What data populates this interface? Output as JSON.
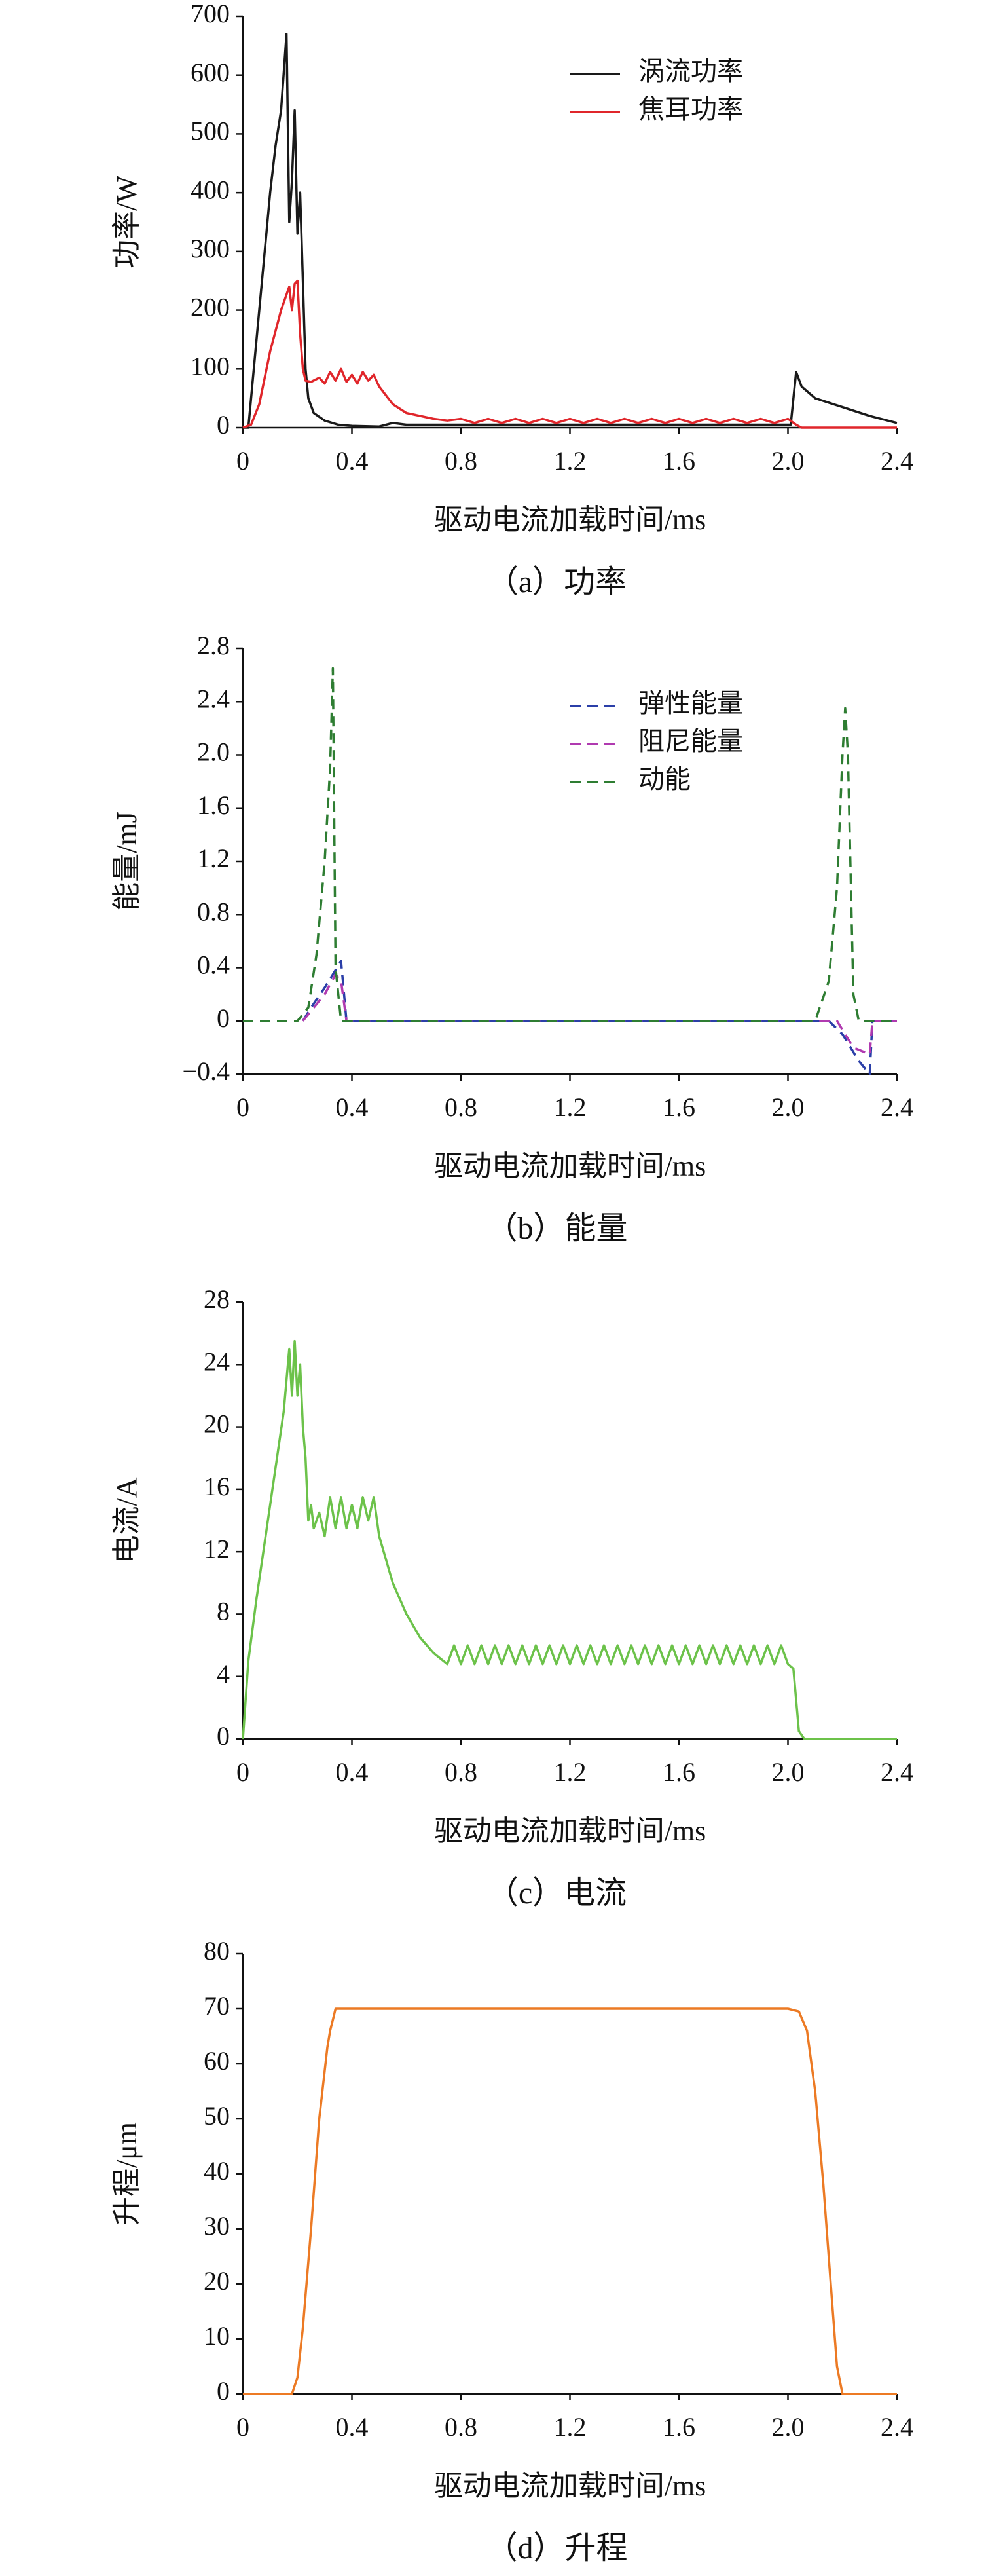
{
  "chart_data": [
    {
      "type": "line",
      "title": "（a）功率",
      "xlabel": "驱动电流加载时间/ms",
      "ylabel": "功率/W",
      "xlim": [
        0,
        2.4
      ],
      "xticks": [
        0,
        0.4,
        0.8,
        1.2,
        1.6,
        {
          "value": 2,
          "label": "2.0"
        },
        2.4
      ],
      "ylim": [
        0,
        700
      ],
      "yticks": [
        0,
        100,
        200,
        300,
        400,
        500,
        600,
        700
      ],
      "grid": false,
      "legend": "upper right",
      "dashed": false,
      "series": [
        {
          "name": "涡流功率",
          "color": "#1a1a1a",
          "x": [
            0,
            0.02,
            0.05,
            0.08,
            0.1,
            0.12,
            0.14,
            0.16,
            0.17,
            0.18,
            0.19,
            0.2,
            0.21,
            0.22,
            0.23,
            0.24,
            0.26,
            0.3,
            0.35,
            0.4,
            0.5,
            0.55,
            0.6,
            0.7,
            0.8,
            1.2,
            1.6,
            2.0,
            2.01,
            2.03,
            2.05,
            2.1,
            2.2,
            2.3,
            2.4
          ],
          "values": [
            0,
            0,
            150,
            300,
            400,
            480,
            540,
            670,
            350,
            420,
            540,
            330,
            400,
            250,
            100,
            50,
            25,
            12,
            5,
            3,
            2,
            8,
            5,
            5,
            5,
            5,
            5,
            5,
            5,
            95,
            70,
            50,
            35,
            20,
            8
          ]
        },
        {
          "name": "焦耳功率",
          "color": "#e0262b",
          "x": [
            0,
            0.03,
            0.06,
            0.1,
            0.14,
            0.17,
            0.18,
            0.19,
            0.2,
            0.21,
            0.22,
            0.23,
            0.25,
            0.28,
            0.3,
            0.32,
            0.34,
            0.36,
            0.38,
            0.4,
            0.42,
            0.44,
            0.46,
            0.48,
            0.5,
            0.55,
            0.6,
            0.7,
            0.75,
            0.8,
            0.85,
            0.9,
            0.95,
            1.0,
            1.05,
            1.1,
            1.15,
            1.2,
            1.25,
            1.3,
            1.35,
            1.4,
            1.45,
            1.5,
            1.55,
            1.6,
            1.65,
            1.7,
            1.75,
            1.8,
            1.85,
            1.9,
            1.95,
            2.0,
            2.03,
            2.05,
            2.4
          ],
          "values": [
            0,
            5,
            40,
            130,
            200,
            240,
            200,
            245,
            250,
            160,
            100,
            80,
            78,
            85,
            75,
            95,
            80,
            100,
            78,
            90,
            75,
            95,
            80,
            90,
            70,
            40,
            25,
            15,
            12,
            15,
            8,
            15,
            8,
            15,
            8,
            15,
            8,
            15,
            8,
            15,
            8,
            15,
            8,
            15,
            8,
            15,
            8,
            15,
            8,
            15,
            8,
            15,
            8,
            15,
            5,
            0,
            0
          ]
        }
      ]
    },
    {
      "type": "line",
      "title": "（b）能量",
      "xlabel": "驱动电流加载时间/ms",
      "ylabel": "能量/mJ",
      "xlim": [
        0,
        2.4
      ],
      "xticks": [
        0,
        0.4,
        0.8,
        1.2,
        1.6,
        {
          "value": 2,
          "label": "2.0"
        },
        2.4
      ],
      "ylim": [
        -0.4,
        2.8
      ],
      "yticks": [
        {
          "value": -0.4,
          "label": "−0.4"
        },
        0,
        0.4,
        0.8,
        1.2,
        1.6,
        {
          "value": 2,
          "label": "2.0"
        },
        2.4,
        2.8
      ],
      "grid": false,
      "legend": "upper right",
      "dashed": true,
      "series": [
        {
          "name": "弹性能量",
          "color": "#2b3fa8",
          "x": [
            0.22,
            0.25,
            0.3,
            0.33,
            0.36,
            0.38,
            2.15,
            2.2,
            2.26,
            2.3,
            2.31,
            2.4
          ],
          "values": [
            0,
            0.1,
            0.25,
            0.35,
            0.45,
            0,
            0,
            -0.1,
            -0.3,
            -0.4,
            0,
            0
          ]
        },
        {
          "name": "阻尼能量",
          "color": "#b03ab0",
          "x": [
            0.22,
            0.3,
            0.34,
            0.36,
            0.38,
            2.18,
            2.24,
            2.3,
            2.31,
            2.4
          ],
          "values": [
            0,
            0.2,
            0.35,
            0.3,
            0,
            0,
            -0.2,
            -0.25,
            0,
            0
          ]
        },
        {
          "name": "动能",
          "color": "#2e7d32",
          "x": [
            0,
            0.2,
            0.24,
            0.27,
            0.3,
            0.32,
            0.33,
            0.34,
            0.36,
            0.4,
            2.1,
            2.15,
            2.18,
            2.2,
            2.21,
            2.22,
            2.24,
            2.26,
            2.4
          ],
          "values": [
            0,
            0,
            0.1,
            0.5,
            1.2,
            1.9,
            2.65,
            0.4,
            0,
            0,
            0,
            0.3,
            1.0,
            2.0,
            2.35,
            2.0,
            0.2,
            0,
            0
          ]
        }
      ]
    },
    {
      "type": "line",
      "title": "（c）电流",
      "xlabel": "驱动电流加载时间/ms",
      "ylabel": "电流/A",
      "xlim": [
        0,
        2.4
      ],
      "xticks": [
        0,
        0.4,
        0.8,
        1.2,
        1.6,
        {
          "value": 2,
          "label": "2.0"
        },
        2.4
      ],
      "ylim": [
        0,
        28
      ],
      "yticks": [
        0,
        4,
        8,
        12,
        16,
        20,
        24,
        28
      ],
      "grid": false,
      "dashed": false,
      "color": "#6cc24a",
      "x": [
        0,
        0.02,
        0.05,
        0.1,
        0.15,
        0.17,
        0.18,
        0.19,
        0.2,
        0.21,
        0.22,
        0.23,
        0.24,
        0.25,
        0.26,
        0.28,
        0.3,
        0.32,
        0.34,
        0.36,
        0.38,
        0.4,
        0.42,
        0.44,
        0.46,
        0.48,
        0.5,
        0.55,
        0.6,
        0.65,
        0.7,
        0.75,
        0.775,
        0.8,
        0.825,
        0.85,
        0.875,
        0.9,
        0.925,
        0.95,
        0.975,
        1.0,
        1.025,
        1.05,
        1.075,
        1.1,
        1.125,
        1.15,
        1.175,
        1.2,
        1.225,
        1.25,
        1.275,
        1.3,
        1.325,
        1.35,
        1.375,
        1.4,
        1.425,
        1.45,
        1.475,
        1.5,
        1.525,
        1.55,
        1.575,
        1.6,
        1.625,
        1.65,
        1.675,
        1.7,
        1.725,
        1.75,
        1.775,
        1.8,
        1.825,
        1.85,
        1.875,
        1.9,
        1.925,
        1.95,
        1.975,
        2.0,
        2.02,
        2.04,
        2.06,
        2.4
      ],
      "values": [
        0,
        5,
        9,
        15,
        21,
        25,
        22,
        25.5,
        22,
        24,
        20,
        18,
        14,
        15,
        13.5,
        14.5,
        13,
        15.5,
        13.5,
        15.5,
        13.5,
        15,
        13.5,
        15.5,
        14,
        15.5,
        13,
        10,
        8,
        6.5,
        5.5,
        4.8,
        6,
        4.8,
        6,
        4.8,
        6,
        4.8,
        6,
        4.8,
        6,
        4.8,
        6,
        4.8,
        6,
        4.8,
        6,
        4.8,
        6,
        4.8,
        6,
        4.8,
        6,
        4.8,
        6,
        4.8,
        6,
        4.8,
        6,
        4.8,
        6,
        4.8,
        6,
        4.8,
        6,
        4.8,
        6,
        4.8,
        6,
        4.8,
        6,
        4.8,
        6,
        4.8,
        6,
        4.8,
        6,
        4.8,
        6,
        4.8,
        6,
        4.8,
        4.5,
        0.5,
        0,
        0
      ]
    },
    {
      "type": "line",
      "title": "（d）升程",
      "xlabel": "驱动电流加载时间/ms",
      "ylabel": "升程/μm",
      "xlim": [
        0,
        2.4
      ],
      "xticks": [
        0,
        0.4,
        0.8,
        1.2,
        1.6,
        {
          "value": 2,
          "label": "2.0"
        },
        2.4
      ],
      "ylim": [
        0,
        80
      ],
      "yticks": [
        0,
        10,
        20,
        30,
        40,
        50,
        60,
        70,
        80
      ],
      "grid": false,
      "dashed": false,
      "color": "#ec7a24",
      "x": [
        0,
        0.18,
        0.2,
        0.22,
        0.25,
        0.28,
        0.31,
        0.32,
        0.33,
        0.34,
        2.0,
        2.04,
        2.07,
        2.1,
        2.13,
        2.16,
        2.18,
        2.2,
        2.4
      ],
      "values": [
        0,
        0,
        3,
        12,
        30,
        50,
        63,
        66,
        68,
        70,
        70,
        69.5,
        66,
        55,
        38,
        18,
        5,
        0,
        0
      ]
    }
  ]
}
